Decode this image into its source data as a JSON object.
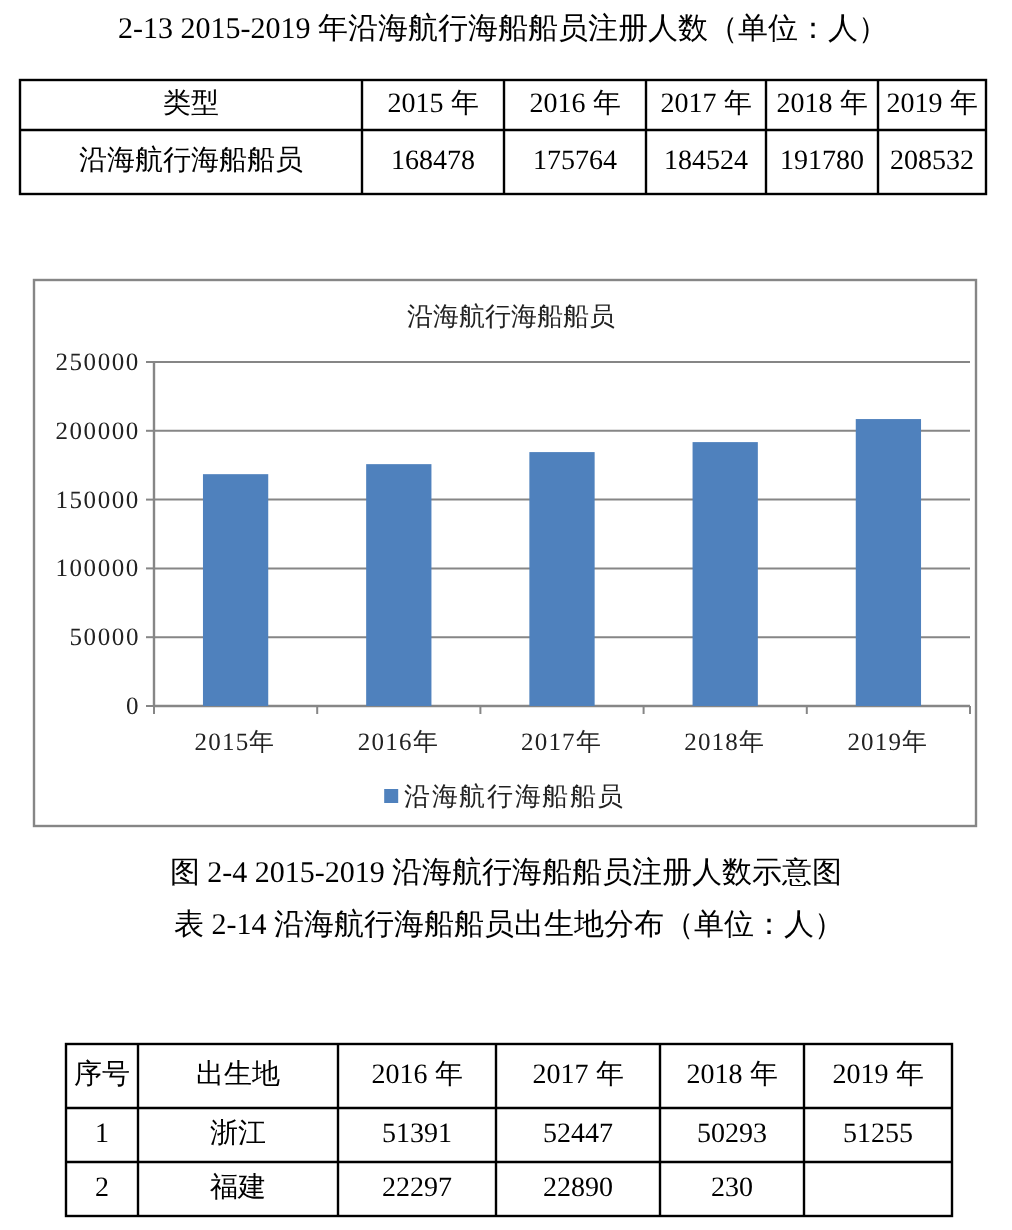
{
  "chart_data": [
    {
      "type": "heatmap",
      "title": "2-13 2015-2019 年沿海航行海船船员注册人数（单位：人）",
      "ylabel": "类型",
      "categories": [
        "2015 年",
        "2016 年",
        "2017 年",
        "2018 年",
        "2019 年"
      ],
      "y_categories": [
        "沿海航行海船船员"
      ],
      "cells": [
        [
          168478,
          175764,
          184524,
          191780,
          208532
        ]
      ],
      "data_labels": true
    },
    {
      "type": "bar",
      "title": "沿海航行海船船员",
      "categories": [
        "2015年",
        "2016年",
        "2017年",
        "2018年",
        "2019年"
      ],
      "series": [
        {
          "name": "沿海航行海船船员",
          "color": "#4f81bd",
          "values": [
            168478,
            175764,
            184524,
            191780,
            208532
          ]
        }
      ],
      "ylim": [
        0,
        250000
      ],
      "yticks": [
        0,
        50000,
        100000,
        150000,
        200000,
        250000
      ],
      "grid": "y",
      "legend": "bottom",
      "annotations": [
        "图 2-4 2015-2019 沿海航行海船船员注册人数示意图"
      ]
    },
    {
      "type": "heatmap",
      "title": "表 2-14 沿海航行海船船员出生地分布（单位：人）",
      "ylabel": "出生地",
      "categories": [
        "2016 年",
        "2017 年",
        "2018 年",
        "2019 年"
      ],
      "y_categories": [
        "浙江",
        "福建"
      ],
      "cells": [
        [
          51391,
          52447,
          50293,
          51255
        ],
        [
          22297,
          22890,
          null,
          null
        ]
      ],
      "cell_labels": [
        [
          "51391",
          "52447",
          "50293",
          "51255"
        ],
        [
          "22297",
          "22890",
          "230",
          null
        ]
      ],
      "data_labels": true,
      "annotations": [
        "序号",
        "1",
        "2"
      ]
    }
  ]
}
